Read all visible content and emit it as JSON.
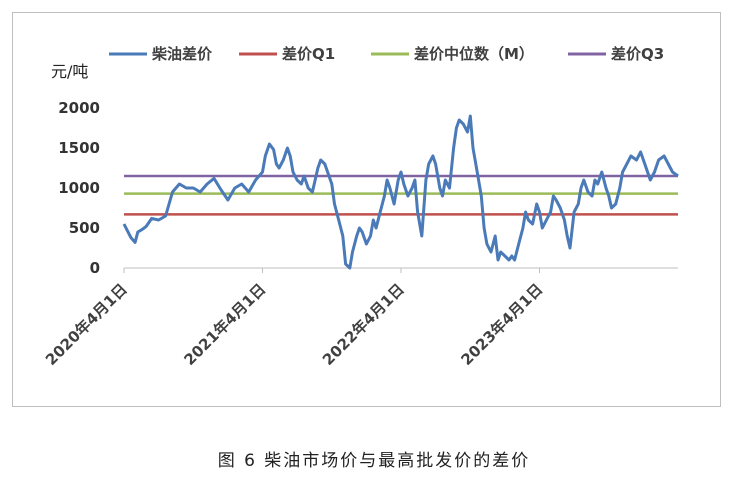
{
  "caption": "图 6 柴油市场价与最高批发价的差价",
  "chart_data": {
    "type": "line",
    "ylabel": "元/吨",
    "ylim": [
      0,
      2000
    ],
    "yticks": [
      0,
      500,
      1000,
      1500,
      2000
    ],
    "xticks": [
      "2020年4月1日",
      "2021年4月1日",
      "2022年4月1日",
      "2023年4月1日"
    ],
    "grid": false,
    "legend_position": "top",
    "legend": [
      "柴油差价",
      "差价Q1",
      "差价中位数（M）",
      "差价Q3"
    ],
    "colors": {
      "spread": "#4a7ab8",
      "q1": "#c0504d",
      "median": "#9bbb59",
      "q3": "#8064a2"
    },
    "series": [
      {
        "name": "柴油差价",
        "x": [
          0,
          0.02,
          0.05,
          0.08,
          0.1,
          0.13,
          0.16,
          0.2,
          0.25,
          0.3,
          0.35,
          0.4,
          0.45,
          0.5,
          0.55,
          0.6,
          0.65,
          0.7,
          0.75,
          0.8,
          0.85,
          0.9,
          0.95,
          1.0,
          1.02,
          1.05,
          1.08,
          1.1,
          1.12,
          1.15,
          1.18,
          1.2,
          1.22,
          1.25,
          1.28,
          1.3,
          1.33,
          1.36,
          1.4,
          1.42,
          1.45,
          1.47,
          1.5,
          1.52,
          1.55,
          1.58,
          1.6,
          1.63,
          1.65,
          1.68,
          1.7,
          1.72,
          1.75,
          1.78,
          1.8,
          1.82,
          1.85,
          1.88,
          1.9,
          1.92,
          1.95,
          1.98,
          2.0,
          2.02,
          2.05,
          2.08,
          2.1,
          2.12,
          2.15,
          2.18,
          2.2,
          2.23,
          2.25,
          2.28,
          2.3,
          2.32,
          2.35,
          2.38,
          2.4,
          2.42,
          2.45,
          2.48,
          2.5,
          2.52,
          2.55,
          2.58,
          2.6,
          2.62,
          2.65,
          2.68,
          2.7,
          2.72,
          2.75,
          2.78,
          2.8,
          2.82,
          2.85,
          2.88,
          2.9,
          2.92,
          2.95,
          2.98,
          3.0,
          3.02,
          3.05,
          3.08,
          3.1,
          3.12,
          3.15,
          3.18,
          3.2,
          3.22,
          3.25,
          3.28,
          3.3,
          3.32,
          3.35,
          3.38,
          3.4,
          3.42,
          3.45,
          3.48,
          3.5,
          3.52,
          3.55,
          3.58,
          3.6,
          3.63,
          3.66,
          3.7,
          3.73,
          3.76,
          3.8,
          3.83,
          3.86,
          3.9,
          3.93,
          3.96,
          4.0
        ],
        "values": [
          550,
          480,
          380,
          320,
          450,
          480,
          520,
          620,
          600,
          650,
          950,
          1050,
          1000,
          1000,
          950,
          1050,
          1120,
          980,
          850,
          1000,
          1050,
          950,
          1100,
          1200,
          1400,
          1550,
          1480,
          1300,
          1250,
          1350,
          1500,
          1400,
          1200,
          1100,
          1050,
          1150,
          1000,
          950,
          1250,
          1350,
          1300,
          1200,
          1050,
          800,
          600,
          400,
          50,
          0,
          200,
          400,
          500,
          450,
          300,
          400,
          600,
          500,
          700,
          900,
          1100,
          1000,
          800,
          1100,
          1200,
          1050,
          900,
          1000,
          1100,
          700,
          400,
          1100,
          1300,
          1400,
          1300,
          1000,
          900,
          1100,
          1000,
          1500,
          1750,
          1850,
          1800,
          1700,
          1900,
          1500,
          1200,
          900,
          500,
          300,
          200,
          400,
          100,
          200,
          150,
          100,
          150,
          100,
          300,
          500,
          700,
          600,
          550,
          800,
          700,
          500,
          600,
          700,
          900,
          850,
          750,
          600,
          400,
          250,
          700,
          800,
          1000,
          1100,
          950,
          900,
          1100,
          1050,
          1200,
          1000,
          900,
          750,
          800,
          1000,
          1200,
          1300,
          1400,
          1350,
          1450,
          1300,
          1100,
          1200,
          1350,
          1400,
          1300,
          1200,
          1150
        ]
      },
      {
        "name": "差价Q1",
        "x": [
          0,
          4
        ],
        "values": [
          670,
          670
        ]
      },
      {
        "name": "差价中位数（M）",
        "x": [
          0,
          4
        ],
        "values": [
          930,
          930
        ]
      },
      {
        "name": "差价Q3",
        "x": [
          0,
          4
        ],
        "values": [
          1150,
          1150
        ]
      }
    ]
  }
}
